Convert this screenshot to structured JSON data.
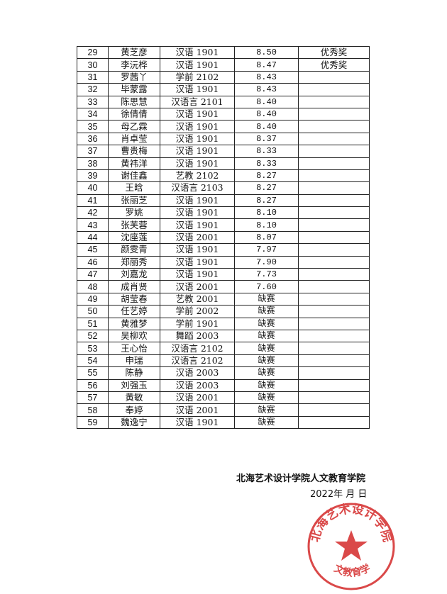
{
  "table": {
    "rows": [
      [
        "29",
        "黄芝彦",
        "汉语 1901",
        "8.50",
        "优秀奖"
      ],
      [
        "30",
        "李沅桦",
        "汉语 1901",
        "8.47",
        "优秀奖"
      ],
      [
        "31",
        "罗茜丫",
        "学前 2102",
        "8.43",
        ""
      ],
      [
        "32",
        "毕蒙露",
        "汉语 1901",
        "8.43",
        ""
      ],
      [
        "33",
        "陈思慧",
        "汉语言 2101",
        "8.40",
        ""
      ],
      [
        "34",
        "徐倩倩",
        "汉语 1901",
        "8.40",
        ""
      ],
      [
        "35",
        "母乙霖",
        "汉语 1901",
        "8.40",
        ""
      ],
      [
        "36",
        "肖卓莹",
        "汉语 1901",
        "8.37",
        ""
      ],
      [
        "37",
        "曹贵梅",
        "汉语 1901",
        "8.33",
        ""
      ],
      [
        "38",
        "黄祎洋",
        "汉语 1901",
        "8.33",
        ""
      ],
      [
        "39",
        "谢佳鑫",
        "艺教 2102",
        "8.27",
        ""
      ],
      [
        "40",
        "王晗",
        "汉语言 2103",
        "8.27",
        ""
      ],
      [
        "41",
        "张丽芝",
        "汉语 1901",
        "8.27",
        ""
      ],
      [
        "42",
        "罗姚",
        "汉语 1901",
        "8.10",
        ""
      ],
      [
        "43",
        "张芙蓉",
        "汉语 1901",
        "8.10",
        ""
      ],
      [
        "44",
        "沈座莲",
        "汉语 2001",
        "8.07",
        ""
      ],
      [
        "45",
        "颜雯青",
        "汉语 1901",
        "7.97",
        ""
      ],
      [
        "46",
        "郑丽秀",
        "汉语 1901",
        "7.90",
        ""
      ],
      [
        "47",
        "刘嘉龙",
        "汉语 1901",
        "7.73",
        ""
      ],
      [
        "48",
        "成肖贤",
        "汉语 2001",
        "7.60",
        ""
      ],
      [
        "49",
        "胡莹春",
        "艺教 2001",
        "缺赛",
        ""
      ],
      [
        "50",
        "任艺婷",
        "学前 2002",
        "缺赛",
        ""
      ],
      [
        "51",
        "黄雅梦",
        "学前 1901",
        "缺赛",
        ""
      ],
      [
        "52",
        "吴柳欢",
        "舞蹈 2003",
        "缺赛",
        ""
      ],
      [
        "53",
        "王心怡",
        "汉语言 2102",
        "缺赛",
        ""
      ],
      [
        "54",
        "申瑞",
        "汉语言 2102",
        "缺赛",
        ""
      ],
      [
        "55",
        "陈静",
        "汉语 2003",
        "缺赛",
        ""
      ],
      [
        "56",
        "刘强玉",
        "汉语 2003",
        "缺赛",
        ""
      ],
      [
        "57",
        "黄敏",
        "汉语 2001",
        "缺赛",
        ""
      ],
      [
        "58",
        "奉婷",
        "汉语 2001",
        "缺赛",
        ""
      ],
      [
        "59",
        "魏逸宁",
        "汉语 1901",
        "缺赛",
        ""
      ]
    ]
  },
  "footer": {
    "organization": "北海艺术设计学院人文教育学院",
    "date": "2022年   月   日"
  },
  "stamp": {
    "top_text": "北海艺术设计学院",
    "bottom_text": "人文教育学院",
    "color": "#d42a2a"
  }
}
